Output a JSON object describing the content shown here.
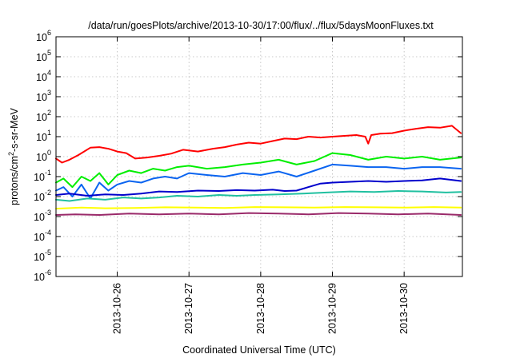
{
  "chart_data": {
    "type": "line",
    "title": "/data/run/goesPlots/archive/2013-10-30/17:00/flux/../flux/5daysMoonFluxes.txt",
    "xlabel": "Coordinated Universal Time (UTC)",
    "ylabel_parts": [
      "protons/cm",
      "2",
      "-s-sr-MeV"
    ],
    "y_scale": "log",
    "ylim": [
      1e-06,
      1000000.0
    ],
    "xlim": [
      "2013-10-25T03:30",
      "2013-10-30T19:30"
    ],
    "grid": true,
    "legend": "none",
    "x_ticks": [
      "2013-10-26",
      "2013-10-27",
      "2013-10-28",
      "2013-10-29",
      "2013-10-30"
    ],
    "y_ticks": [
      {
        "base": "10",
        "exp": "-6"
      },
      {
        "base": "10",
        "exp": "-5"
      },
      {
        "base": "10",
        "exp": "-4"
      },
      {
        "base": "10",
        "exp": "-3"
      },
      {
        "base": "10",
        "exp": "-2"
      },
      {
        "base": "10",
        "exp": "-1"
      },
      {
        "base": "10",
        "exp": "0"
      },
      {
        "base": "10",
        "exp": "1"
      },
      {
        "base": "10",
        "exp": "2"
      },
      {
        "base": "10",
        "exp": "3"
      },
      {
        "base": "10",
        "exp": "4"
      },
      {
        "base": "10",
        "exp": "5"
      },
      {
        "base": "10",
        "exp": "6"
      }
    ],
    "series": [
      {
        "color": "#ff0000",
        "x": [
          "2013-10-25T03:30",
          "2013-10-25T05:30",
          "2013-10-25T08:00",
          "2013-10-25T11:00",
          "2013-10-25T15:00",
          "2013-10-25T18:00",
          "2013-10-25T21:00",
          "2013-10-26T00:00",
          "2013-10-26T03:00",
          "2013-10-26T06:00",
          "2013-10-26T10:00",
          "2013-10-26T14:00",
          "2013-10-26T18:00",
          "2013-10-26T22:00",
          "2013-10-27T03:00",
          "2013-10-27T08:00",
          "2013-10-27T12:00",
          "2013-10-27T16:00",
          "2013-10-27T20:00",
          "2013-10-28T00:00",
          "2013-10-28T04:00",
          "2013-10-28T08:00",
          "2013-10-28T12:00",
          "2013-10-28T16:00",
          "2013-10-28T20:00",
          "2013-10-29T00:00",
          "2013-10-29T04:00",
          "2013-10-29T08:00",
          "2013-10-29T11:00",
          "2013-10-29T12:00",
          "2013-10-29T13:00",
          "2013-10-29T16:00",
          "2013-10-29T20:00",
          "2013-10-30T00:00",
          "2013-10-30T04:00",
          "2013-10-30T08:00",
          "2013-10-30T12:00",
          "2013-10-30T16:00",
          "2013-10-30T19:00"
        ],
        "y": [
          0.8,
          0.5,
          0.7,
          1.2,
          2.8,
          3.0,
          2.5,
          1.8,
          1.5,
          0.8,
          0.9,
          1.1,
          1.4,
          2.2,
          1.8,
          2.5,
          3.0,
          4.0,
          5.0,
          4.5,
          6.0,
          8.0,
          7.5,
          10,
          9.0,
          10,
          11,
          12,
          10,
          4.5,
          12,
          14,
          15,
          20,
          25,
          30,
          28,
          35,
          15
        ]
      },
      {
        "color": "#00ee00",
        "x": [
          "2013-10-25T03:30",
          "2013-10-25T06:00",
          "2013-10-25T09:00",
          "2013-10-25T12:00",
          "2013-10-25T15:00",
          "2013-10-25T18:00",
          "2013-10-25T21:00",
          "2013-10-26T00:00",
          "2013-10-26T04:00",
          "2013-10-26T08:00",
          "2013-10-26T12:00",
          "2013-10-26T16:00",
          "2013-10-26T20:00",
          "2013-10-27T00:00",
          "2013-10-27T06:00",
          "2013-10-27T12:00",
          "2013-10-27T18:00",
          "2013-10-28T00:00",
          "2013-10-28T06:00",
          "2013-10-28T12:00",
          "2013-10-28T18:00",
          "2013-10-29T00:00",
          "2013-10-29T06:00",
          "2013-10-29T12:00",
          "2013-10-29T18:00",
          "2013-10-30T00:00",
          "2013-10-30T06:00",
          "2013-10-30T12:00",
          "2013-10-30T19:00"
        ],
        "y": [
          0.05,
          0.08,
          0.03,
          0.1,
          0.06,
          0.15,
          0.04,
          0.12,
          0.2,
          0.15,
          0.25,
          0.2,
          0.3,
          0.35,
          0.25,
          0.3,
          0.4,
          0.5,
          0.7,
          0.4,
          0.6,
          1.5,
          1.2,
          0.7,
          1.0,
          0.8,
          1.0,
          0.7,
          0.9
        ]
      },
      {
        "color": "#0a64f0",
        "x": [
          "2013-10-25T03:30",
          "2013-10-25T06:00",
          "2013-10-25T09:00",
          "2013-10-25T12:00",
          "2013-10-25T15:00",
          "2013-10-25T18:00",
          "2013-10-25T21:00",
          "2013-10-26T00:00",
          "2013-10-26T04:00",
          "2013-10-26T08:00",
          "2013-10-26T12:00",
          "2013-10-26T16:00",
          "2013-10-26T20:00",
          "2013-10-27T00:00",
          "2013-10-27T06:00",
          "2013-10-27T12:00",
          "2013-10-27T18:00",
          "2013-10-28T00:00",
          "2013-10-28T06:00",
          "2013-10-28T12:00",
          "2013-10-28T18:00",
          "2013-10-29T00:00",
          "2013-10-29T06:00",
          "2013-10-29T12:00",
          "2013-10-29T18:00",
          "2013-10-30T00:00",
          "2013-10-30T06:00",
          "2013-10-30T12:00",
          "2013-10-30T19:00"
        ],
        "y": [
          0.02,
          0.03,
          0.01,
          0.04,
          0.008,
          0.05,
          0.02,
          0.04,
          0.06,
          0.05,
          0.08,
          0.1,
          0.08,
          0.15,
          0.12,
          0.1,
          0.15,
          0.12,
          0.18,
          0.1,
          0.2,
          0.4,
          0.35,
          0.3,
          0.3,
          0.25,
          0.3,
          0.3,
          0.25
        ]
      },
      {
        "color": "#0000cc",
        "x": [
          "2013-10-25T03:30",
          "2013-10-25T08:00",
          "2013-10-25T14:00",
          "2013-10-25T20:00",
          "2013-10-26T02:00",
          "2013-10-26T08:00",
          "2013-10-26T14:00",
          "2013-10-26T20:00",
          "2013-10-27T03:00",
          "2013-10-27T10:00",
          "2013-10-27T16:00",
          "2013-10-27T22:00",
          "2013-10-28T04:00",
          "2013-10-28T08:00",
          "2013-10-28T12:00",
          "2013-10-28T16:00",
          "2013-10-28T20:00",
          "2013-10-29T00:00",
          "2013-10-29T06:00",
          "2013-10-29T12:00",
          "2013-10-29T18:00",
          "2013-10-30T00:00",
          "2013-10-30T06:00",
          "2013-10-30T12:00",
          "2013-10-30T19:00"
        ],
        "y": [
          0.012,
          0.014,
          0.011,
          0.013,
          0.012,
          0.014,
          0.018,
          0.017,
          0.02,
          0.019,
          0.021,
          0.02,
          0.022,
          0.019,
          0.02,
          0.03,
          0.045,
          0.05,
          0.055,
          0.06,
          0.055,
          0.06,
          0.065,
          0.08,
          0.06
        ]
      },
      {
        "color": "#20c0a0",
        "x": [
          "2013-10-25T03:30",
          "2013-10-25T08:00",
          "2013-10-25T14:00",
          "2013-10-25T20:00",
          "2013-10-26T02:00",
          "2013-10-26T08:00",
          "2013-10-26T14:00",
          "2013-10-26T20:00",
          "2013-10-27T03:00",
          "2013-10-27T10:00",
          "2013-10-27T16:00",
          "2013-10-27T22:00",
          "2013-10-28T06:00",
          "2013-10-28T14:00",
          "2013-10-28T22:00",
          "2013-10-29T06:00",
          "2013-10-29T14:00",
          "2013-10-29T22:00",
          "2013-10-30T06:00",
          "2013-10-30T14:00",
          "2013-10-30T19:00"
        ],
        "y": [
          0.007,
          0.006,
          0.008,
          0.007,
          0.009,
          0.008,
          0.009,
          0.011,
          0.01,
          0.012,
          0.011,
          0.012,
          0.013,
          0.014,
          0.016,
          0.018,
          0.017,
          0.019,
          0.018,
          0.016,
          0.017
        ]
      },
      {
        "color": "#ffff00",
        "x": [
          "2013-10-25T03:30",
          "2013-10-25T12:00",
          "2013-10-25T20:00",
          "2013-10-26T06:00",
          "2013-10-26T16:00",
          "2013-10-27T02:00",
          "2013-10-27T12:00",
          "2013-10-27T22:00",
          "2013-10-28T08:00",
          "2013-10-28T18:00",
          "2013-10-29T04:00",
          "2013-10-29T14:00",
          "2013-10-30T00:00",
          "2013-10-30T10:00",
          "2013-10-30T19:00"
        ],
        "y": [
          0.0025,
          0.0028,
          0.0026,
          0.0027,
          0.0029,
          0.0028,
          0.0027,
          0.003,
          0.0029,
          0.0028,
          0.003,
          0.0029,
          0.0028,
          0.003,
          0.0028
        ]
      },
      {
        "color": "#9a2a6a",
        "x": [
          "2013-10-25T03:30",
          "2013-10-25T10:00",
          "2013-10-25T18:00",
          "2013-10-26T04:00",
          "2013-10-26T14:00",
          "2013-10-27T00:00",
          "2013-10-27T10:00",
          "2013-10-27T20:00",
          "2013-10-28T06:00",
          "2013-10-28T16:00",
          "2013-10-29T02:00",
          "2013-10-29T12:00",
          "2013-10-29T22:00",
          "2013-10-30T08:00",
          "2013-10-30T19:00"
        ],
        "y": [
          0.0012,
          0.0013,
          0.0012,
          0.0014,
          0.0013,
          0.0014,
          0.0013,
          0.0015,
          0.0014,
          0.0013,
          0.0015,
          0.0014,
          0.0013,
          0.0014,
          0.0012
        ]
      }
    ]
  }
}
